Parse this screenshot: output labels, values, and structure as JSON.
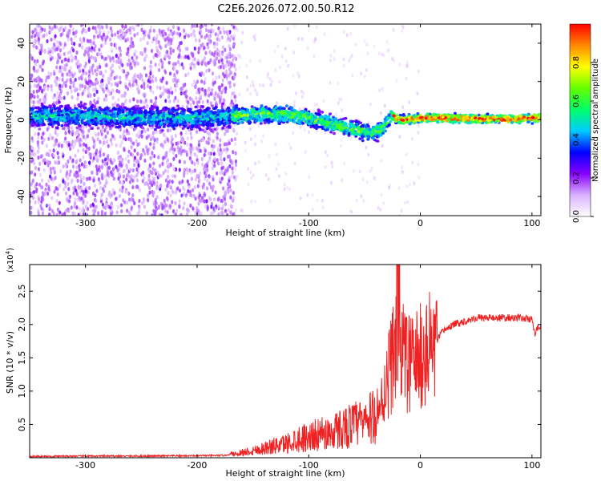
{
  "figure_title": "C2E6.2026.072.00.50.R12",
  "chart_data": [
    {
      "type": "heatmap",
      "xlabel": "Height of straight line (km)",
      "ylabel": "Frequency (Hz)",
      "xlim": [
        -350,
        108
      ],
      "ylim": [
        -50,
        50
      ],
      "xticks": [
        -300,
        -200,
        -100,
        0,
        100
      ],
      "yticks": [
        -40,
        -20,
        0,
        20,
        40
      ],
      "colorbar": {
        "label": "Normalized spectral amplitude",
        "range": [
          0,
          1
        ],
        "ticks": [
          "0.0",
          "0.2",
          "0.4",
          "0.6",
          "0.8"
        ],
        "colors": [
          "#ffffff",
          "#d9b3ff",
          "#8800ff",
          "#0000ff",
          "#00ccff",
          "#00ff66",
          "#66ff00",
          "#ffff00",
          "#ff8800",
          "#ff0000"
        ]
      },
      "ridge": {
        "x": [
          -350,
          -300,
          -250,
          -200,
          -170,
          -150,
          -120,
          -100,
          -80,
          -60,
          -45,
          -35,
          -28,
          -25,
          -20,
          -10,
          0,
          20,
          50,
          80,
          108
        ],
        "y": [
          2,
          2,
          1,
          1,
          2,
          3,
          3,
          1,
          -2,
          -5,
          -7,
          -5,
          0,
          2,
          0,
          0,
          1,
          1,
          0.5,
          0.5,
          1
        ]
      },
      "grid": false
    },
    {
      "type": "line",
      "xlabel": "Height of straight line (km)",
      "ylabel": "SNR (10 * v/v)",
      "multiplier": "(x10",
      "exponent": "4",
      "exponent_suffix": ")",
      "xlim": [
        -350,
        108
      ],
      "ylim": [
        0,
        29000
      ],
      "xticks": [
        -300,
        -200,
        -100,
        0,
        100
      ],
      "yticks": [
        5000,
        10000,
        15000,
        20000,
        25000
      ],
      "ytick_labels": [
        "0.5",
        "1.0",
        "1.5",
        "2.0",
        "2.5"
      ],
      "series": [
        {
          "color": "#ee2222",
          "x": [
            -350,
            -300,
            -250,
            -200,
            -175,
            -160,
            -150,
            -140,
            -130,
            -120,
            -110,
            -100,
            -90,
            -80,
            -70,
            -60,
            -50,
            -45,
            -40,
            -35,
            -30,
            -25,
            -22,
            -20,
            -18,
            -15,
            -10,
            -5,
            0,
            5,
            10,
            15,
            20,
            30,
            40,
            50,
            60,
            70,
            80,
            90,
            100,
            103,
            105,
            108
          ],
          "y": [
            200,
            250,
            250,
            300,
            350,
            900,
            1200,
            1600,
            2000,
            2400,
            3200,
            3500,
            3900,
            4200,
            5000,
            5500,
            6000,
            6300,
            7000,
            8000,
            12000,
            15000,
            18000,
            26000,
            19000,
            15000,
            14000,
            14500,
            15000,
            15600,
            16500,
            17500,
            19000,
            20000,
            20500,
            21000,
            21000,
            21000,
            21000,
            21000,
            20700,
            18500,
            19500,
            20000
          ]
        }
      ],
      "grid": false
    }
  ]
}
